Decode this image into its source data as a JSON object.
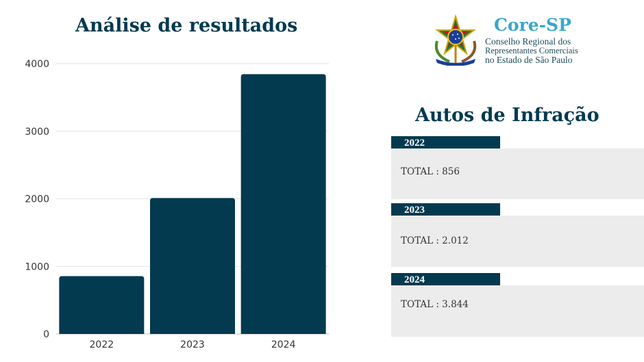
{
  "chart_data": {
    "type": "bar",
    "title": "Análise de resultados",
    "categories": [
      "2022",
      "2023",
      "2024"
    ],
    "values": [
      856,
      2012,
      3844
    ],
    "ylim": [
      0,
      4000
    ],
    "yticks": [
      0,
      1000,
      2000,
      3000,
      4000
    ],
    "grid": true,
    "bar_color": "#043a50"
  },
  "logo": {
    "short_name": "Core-SP",
    "line1": "Conselho Regional dos",
    "line2": "Representantes Comerciais",
    "line3": "no Estado de São Paulo"
  },
  "panel": {
    "title": "Autos de Infração",
    "entries": [
      {
        "year": "2022",
        "total": "TOTAL : 856"
      },
      {
        "year": "2023",
        "total": "TOTAL : 2.012"
      },
      {
        "year": "2024",
        "total": "TOTAL : 3.844"
      }
    ]
  }
}
